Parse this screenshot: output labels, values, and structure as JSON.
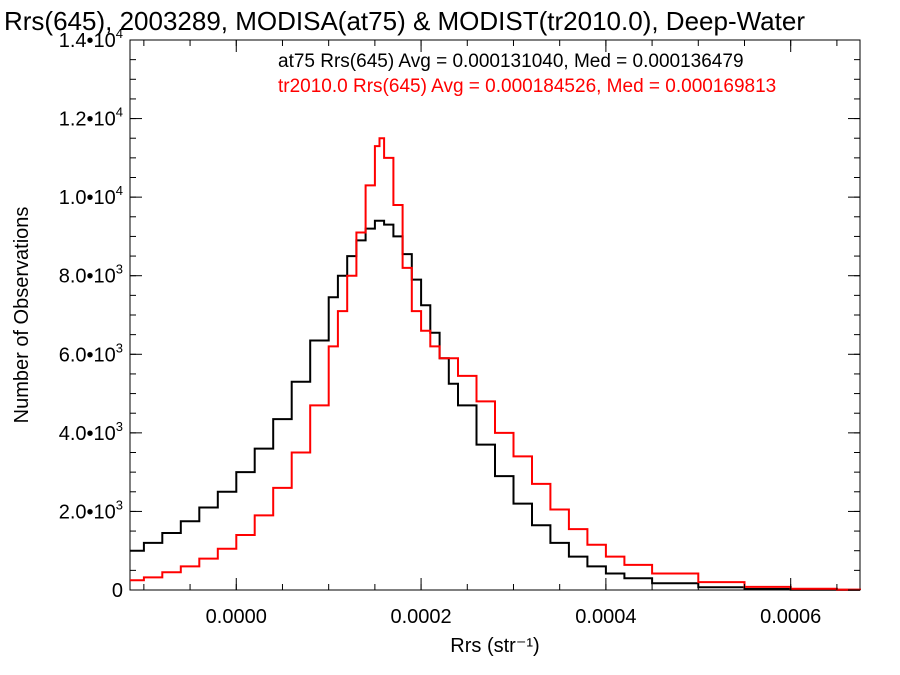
{
  "chart_data": {
    "type": "line",
    "step": true,
    "title": "Rrs(645), 2003289, MODISA(at75) & MODIST(tr2010.0), Deep-Water",
    "xlabel": "Rrs (str⁻¹)",
    "ylabel": "Number of Observations",
    "xlim": [
      -0.000115,
      0.000675
    ],
    "ylim": [
      0,
      14000
    ],
    "xticks": [
      0.0,
      0.0002,
      0.0004,
      0.0006
    ],
    "xtick_labels": [
      "0.0000",
      "0.0002",
      "0.0004",
      "0.0006"
    ],
    "yticks": [
      0,
      2000,
      4000,
      6000,
      8000,
      10000,
      12000,
      14000
    ],
    "ytick_mantissa": [
      "0",
      "2.0•10",
      "4.0•10",
      "6.0•10",
      "8.0•10",
      "1.0•10",
      "1.2•10",
      "1.4•10"
    ],
    "ytick_exponent": [
      "",
      "3",
      "3",
      "3",
      "3",
      "4",
      "4",
      "4"
    ],
    "legend": [
      {
        "text": "at75 Rrs(645) Avg = 0.000131040, Med = 0.000136479",
        "color": "#000000"
      },
      {
        "text": "tr2010.0 Rrs(645) Avg = 0.000184526, Med = 0.000169813",
        "color": "#ff0000"
      }
    ],
    "series": [
      {
        "name": "at75",
        "color": "#000000",
        "x": [
          -0.000115,
          -0.0001,
          -8e-05,
          -6e-05,
          -4e-05,
          -2e-05,
          0.0,
          2e-05,
          4e-05,
          6e-05,
          8e-05,
          0.0001,
          0.00011,
          0.00012,
          0.00013,
          0.00014,
          0.00015,
          0.00016,
          0.00017,
          0.00018,
          0.00019,
          0.0002,
          0.00021,
          0.00022,
          0.00023,
          0.00024,
          0.00026,
          0.00028,
          0.0003,
          0.00032,
          0.00034,
          0.00036,
          0.00038,
          0.0004,
          0.00042,
          0.00045,
          0.0005,
          0.00055,
          0.0006,
          0.00065,
          0.000675
        ],
        "y": [
          1000,
          1200,
          1450,
          1750,
          2100,
          2500,
          3000,
          3600,
          4350,
          5300,
          6350,
          7450,
          8000,
          8500,
          8900,
          9200,
          9400,
          9300,
          9000,
          8550,
          7900,
          7250,
          6550,
          5900,
          5250,
          4700,
          3700,
          2900,
          2200,
          1650,
          1200,
          850,
          600,
          420,
          300,
          170,
          70,
          25,
          8,
          3,
          1
        ]
      },
      {
        "name": "tr2010.0",
        "color": "#ff0000",
        "x": [
          -0.000115,
          -0.0001,
          -8e-05,
          -6e-05,
          -4e-05,
          -2e-05,
          0.0,
          2e-05,
          4e-05,
          6e-05,
          8e-05,
          0.0001,
          0.00011,
          0.00012,
          0.00013,
          0.00014,
          0.00015,
          0.000155,
          0.00016,
          0.00017,
          0.00018,
          0.00019,
          0.0002,
          0.00021,
          0.00022,
          0.00024,
          0.00026,
          0.00028,
          0.0003,
          0.00032,
          0.00034,
          0.00036,
          0.00038,
          0.0004,
          0.00042,
          0.00045,
          0.0005,
          0.00055,
          0.0006,
          0.00065,
          0.000675
        ],
        "y": [
          250,
          320,
          450,
          600,
          800,
          1050,
          1400,
          1900,
          2600,
          3500,
          4700,
          6200,
          7100,
          8000,
          9100,
          10300,
          11300,
          11500,
          11000,
          9800,
          8200,
          7100,
          6600,
          6200,
          5900,
          5450,
          4800,
          4000,
          3400,
          2700,
          2050,
          1550,
          1150,
          850,
          640,
          420,
          200,
          80,
          30,
          10,
          5
        ]
      }
    ]
  }
}
